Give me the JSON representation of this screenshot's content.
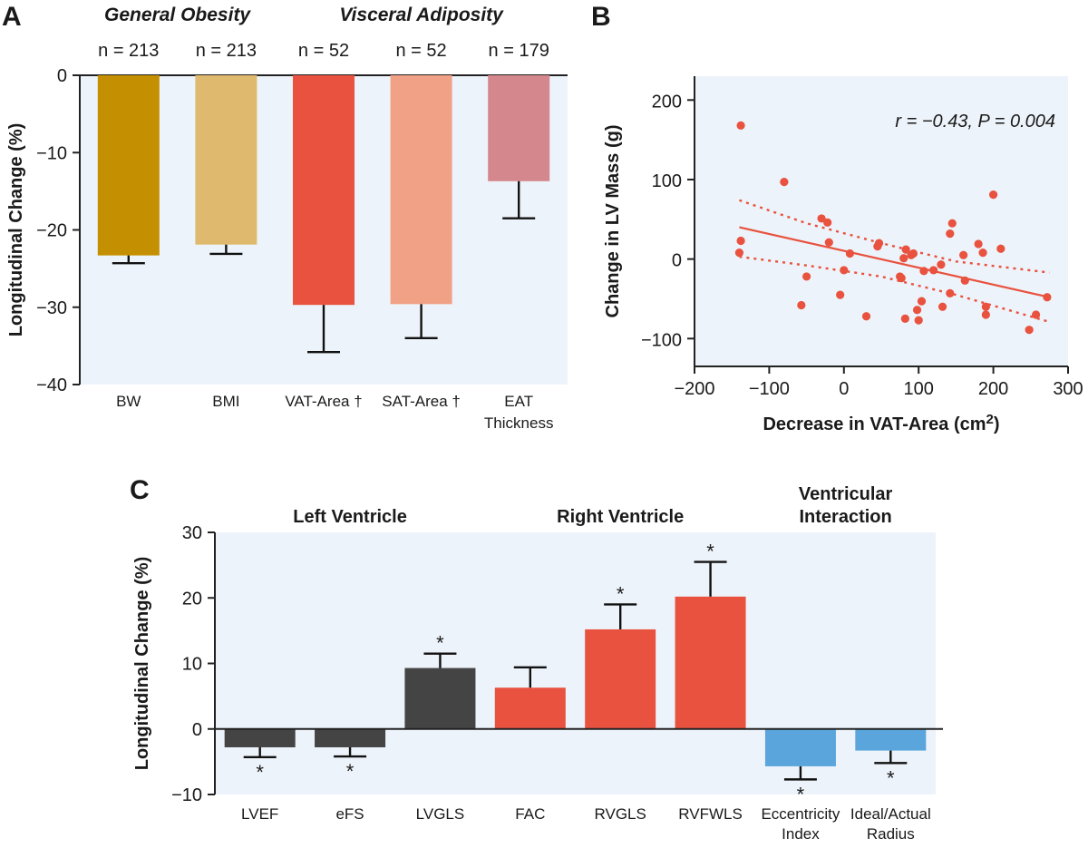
{
  "chart_data": [
    {
      "panel": "A",
      "type": "bar",
      "ylabel": "Longitudinal Change (%)",
      "ylim": [
        -40,
        0
      ],
      "yticks": [
        0,
        -10,
        -20,
        -30,
        -40
      ],
      "groups": [
        {
          "label": "General Obesity",
          "span": [
            0,
            1
          ]
        },
        {
          "label": "Visceral Adiposity",
          "span": [
            2,
            4
          ]
        }
      ],
      "categories": [
        {
          "label": "BW",
          "n": "n = 213",
          "value": -23.3,
          "error": 1.0,
          "color": "#c48f00"
        },
        {
          "label": "BMI",
          "n": "n = 213",
          "value": -21.9,
          "error": 1.2,
          "color": "#dfba6e"
        },
        {
          "label": "VAT-Area †",
          "n": "n = 52",
          "value": -29.7,
          "error": 6.1,
          "color": "#e8523e"
        },
        {
          "label": "SAT-Area †",
          "n": "n = 52",
          "value": -29.6,
          "error": 4.4,
          "color": "#f1a186"
        },
        {
          "label": "EAT\nThickness",
          "n": "n = 179",
          "value": -13.7,
          "error": 4.8,
          "color": "#d4878c"
        }
      ]
    },
    {
      "panel": "B",
      "type": "scatter",
      "xlabel": "Decrease in VAT-Area (cm2)",
      "ylabel": "Change in LV Mass (g)",
      "xlim": [
        -200,
        300
      ],
      "ylim": [
        -135,
        230
      ],
      "xticks": [
        -200,
        -100,
        0,
        100,
        200,
        300
      ],
      "yticks": [
        200,
        100,
        0,
        -100
      ],
      "annotation": "r = −0.43, P = 0.004",
      "color": "#e8523e",
      "points": [
        {
          "x": -138,
          "y": 168
        },
        {
          "x": -138,
          "y": 23
        },
        {
          "x": -140,
          "y": 8
        },
        {
          "x": -80,
          "y": 97
        },
        {
          "x": -57,
          "y": -58
        },
        {
          "x": -50,
          "y": -22
        },
        {
          "x": -30,
          "y": 51
        },
        {
          "x": -22,
          "y": 46
        },
        {
          "x": -20,
          "y": 21
        },
        {
          "x": -5,
          "y": -45
        },
        {
          "x": 0,
          "y": -14
        },
        {
          "x": 8,
          "y": 7
        },
        {
          "x": 30,
          "y": -72
        },
        {
          "x": 45,
          "y": 16
        },
        {
          "x": 47,
          "y": 20
        },
        {
          "x": 75,
          "y": -22
        },
        {
          "x": 77,
          "y": -24
        },
        {
          "x": 80,
          "y": 1
        },
        {
          "x": 83,
          "y": 12
        },
        {
          "x": 82,
          "y": -75
        },
        {
          "x": 90,
          "y": 5
        },
        {
          "x": 93,
          "y": 7
        },
        {
          "x": 98,
          "y": -64
        },
        {
          "x": 100,
          "y": -77
        },
        {
          "x": 104,
          "y": -53
        },
        {
          "x": 107,
          "y": -15
        },
        {
          "x": 120,
          "y": -14
        },
        {
          "x": 130,
          "y": -7
        },
        {
          "x": 132,
          "y": -60
        },
        {
          "x": 142,
          "y": 32
        },
        {
          "x": 145,
          "y": 45
        },
        {
          "x": 142,
          "y": -43
        },
        {
          "x": 160,
          "y": 5
        },
        {
          "x": 162,
          "y": -27
        },
        {
          "x": 180,
          "y": 19
        },
        {
          "x": 186,
          "y": 8
        },
        {
          "x": 190,
          "y": -60
        },
        {
          "x": 190,
          "y": -70
        },
        {
          "x": 200,
          "y": 81
        },
        {
          "x": 210,
          "y": 13
        },
        {
          "x": 248,
          "y": -89
        },
        {
          "x": 257,
          "y": -70
        },
        {
          "x": 272,
          "y": -48
        }
      ],
      "regression": {
        "x": [
          -140,
          275
        ],
        "y": [
          40,
          -48
        ]
      },
      "ci_upper": {
        "x": [
          -140,
          -50,
          50,
          150,
          275
        ],
        "y": [
          74,
          45,
          20,
          -3,
          -17
        ]
      },
      "ci_lower": {
        "x": [
          -140,
          -50,
          50,
          150,
          275
        ],
        "y": [
          3,
          -8,
          -22,
          -45,
          -79
        ]
      }
    },
    {
      "panel": "C",
      "type": "bar",
      "ylabel": "Longitudinal Change (%)",
      "ylim": [
        -10,
        30
      ],
      "yticks": [
        30,
        20,
        10,
        0,
        -10
      ],
      "groups": [
        {
          "label": "Left Ventricle",
          "lines": [
            "Left Ventricle"
          ],
          "span": [
            0,
            2
          ]
        },
        {
          "label": "Right Ventricle",
          "lines": [
            "Right Ventricle"
          ],
          "span": [
            3,
            5
          ]
        },
        {
          "label": "Ventricular Interaction",
          "lines": [
            "Ventricular",
            "Interaction"
          ],
          "span": [
            6,
            7
          ]
        }
      ],
      "significance_marker": "*",
      "categories": [
        {
          "label": "LVEF",
          "value": -2.8,
          "error": 1.5,
          "sig": true,
          "color": "#444444"
        },
        {
          "label": "eFS",
          "value": -2.8,
          "error": 1.4,
          "sig": true,
          "color": "#444444"
        },
        {
          "label": "LVGLS",
          "value": 9.3,
          "error": 2.2,
          "sig": true,
          "color": "#444444"
        },
        {
          "label": "FAC",
          "value": 6.3,
          "error": 3.1,
          "sig": false,
          "color": "#e8523e"
        },
        {
          "label": "RVGLS",
          "value": 15.2,
          "error": 3.8,
          "sig": true,
          "color": "#e8523e"
        },
        {
          "label": "RVFWLS",
          "value": 20.2,
          "error": 5.3,
          "sig": true,
          "color": "#e8523e"
        },
        {
          "label": "Eccentricity\nIndex",
          "value": -5.7,
          "error": 2.0,
          "sig": true,
          "color": "#5aa6dc"
        },
        {
          "label": "Ideal/Actual\nRadius",
          "value": -3.3,
          "error": 1.9,
          "sig": true,
          "color": "#5aa6dc"
        }
      ]
    }
  ],
  "panel_labels": [
    "A",
    "B",
    "C"
  ],
  "colors": {
    "plot_background": "#edf3fa"
  }
}
